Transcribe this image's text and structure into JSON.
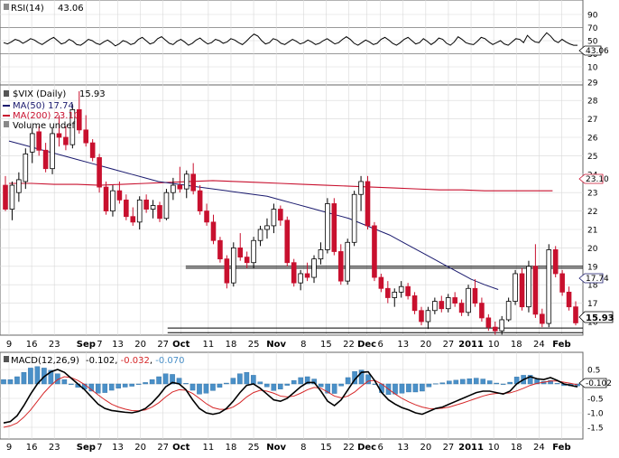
{
  "rsi": {
    "label": "RSI(14)",
    "value_text": "43.06",
    "value_tag": "43.06",
    "ticks": [
      90,
      70,
      50,
      30,
      10
    ],
    "overbought": 70,
    "oversold": 30,
    "values": [
      47,
      45,
      48,
      52,
      50,
      46,
      49,
      53,
      51,
      47,
      44,
      48,
      52,
      55,
      50,
      45,
      47,
      52,
      49,
      44,
      43,
      47,
      52,
      50,
      46,
      44,
      48,
      51,
      47,
      42,
      45,
      50,
      48,
      44,
      46,
      52,
      55,
      50,
      45,
      47,
      53,
      56,
      51,
      46,
      44,
      49,
      52,
      48,
      43,
      46,
      51,
      54,
      49,
      45,
      47,
      52,
      50,
      46,
      48,
      53,
      51,
      47,
      44,
      49,
      55,
      60,
      57,
      50,
      45,
      47,
      53,
      51,
      46,
      44,
      48,
      52,
      49,
      45,
      47,
      51,
      48,
      44,
      46,
      50,
      53,
      49,
      45,
      47,
      52,
      56,
      52,
      46,
      43,
      47,
      51,
      48,
      44,
      46,
      52,
      55,
      51,
      46,
      43,
      47,
      52,
      55,
      50,
      45,
      47,
      53,
      49,
      44,
      48,
      54,
      52,
      46,
      43,
      48,
      56,
      52,
      47,
      45,
      44,
      49,
      55,
      53,
      48,
      44,
      47,
      50,
      45,
      43,
      48,
      53,
      52,
      47,
      58,
      52,
      48,
      47,
      55,
      62,
      57,
      50,
      47,
      52,
      48,
      45,
      43,
      43
    ]
  },
  "price": {
    "symbol": "$VIX (Daily)",
    "last_text": "15.93",
    "last_tag": "15.93",
    "ma50_label": "MA(50) 17.74",
    "ma50_tag": "17.74",
    "ma200_label": "MA(200) 23.10",
    "ma200_tag": "23.10",
    "volume_label": "Volume undef",
    "ticks": [
      29,
      28,
      27,
      26,
      25,
      24,
      23,
      22,
      21,
      20,
      19,
      18,
      17,
      16
    ],
    "hlines": [
      {
        "y": 19.0,
        "from": 42,
        "to": 100
      },
      {
        "y": 18.9,
        "from": 42,
        "to": 100
      },
      {
        "y": 15.65,
        "from": 38,
        "to": 100
      },
      {
        "y": 15.4,
        "from": 38,
        "to": 100
      }
    ],
    "candles": [
      [
        23.4,
        23.9,
        22.0,
        22.1
      ],
      [
        22.1,
        23.6,
        21.5,
        23.4
      ],
      [
        23.0,
        24.1,
        22.5,
        23.7
      ],
      [
        23.6,
        25.4,
        23.2,
        25.1
      ],
      [
        25.2,
        26.5,
        24.6,
        26.2
      ],
      [
        26.3,
        26.6,
        25.0,
        25.3
      ],
      [
        25.3,
        25.7,
        24.1,
        24.3
      ],
      [
        24.3,
        26.5,
        24.0,
        26.2
      ],
      [
        26.2,
        27.2,
        25.5,
        26.0
      ],
      [
        26.0,
        26.6,
        25.3,
        25.6
      ],
      [
        25.6,
        27.8,
        25.4,
        27.5
      ],
      [
        27.5,
        28.5,
        26.2,
        26.4
      ],
      [
        26.4,
        27.2,
        25.5,
        25.7
      ],
      [
        25.7,
        25.9,
        24.7,
        24.9
      ],
      [
        24.9,
        25.1,
        23.0,
        23.3
      ],
      [
        23.3,
        23.6,
        21.8,
        22.0
      ],
      [
        22.0,
        23.4,
        21.7,
        23.1
      ],
      [
        23.1,
        23.6,
        22.4,
        22.6
      ],
      [
        22.6,
        22.9,
        21.5,
        21.7
      ],
      [
        21.7,
        22.2,
        21.2,
        21.4
      ],
      [
        21.4,
        22.8,
        21.0,
        22.6
      ],
      [
        22.6,
        22.9,
        21.9,
        22.1
      ],
      [
        22.1,
        22.6,
        21.6,
        22.3
      ],
      [
        22.3,
        22.5,
        21.4,
        21.6
      ],
      [
        21.6,
        23.2,
        21.5,
        23.0
      ],
      [
        23.0,
        23.8,
        22.6,
        23.4
      ],
      [
        23.4,
        24.4,
        23.0,
        23.2
      ],
      [
        23.2,
        24.2,
        22.7,
        24.0
      ],
      [
        24.0,
        24.6,
        22.9,
        23.1
      ],
      [
        23.1,
        23.4,
        21.8,
        22.0
      ],
      [
        22.0,
        22.4,
        21.2,
        21.4
      ],
      [
        21.4,
        21.8,
        20.2,
        20.4
      ],
      [
        20.4,
        20.6,
        19.2,
        19.4
      ],
      [
        19.4,
        19.6,
        17.8,
        18.1
      ],
      [
        18.1,
        20.3,
        17.9,
        20.0
      ],
      [
        20.0,
        20.8,
        19.3,
        19.5
      ],
      [
        19.5,
        19.8,
        18.9,
        19.2
      ],
      [
        19.2,
        20.6,
        18.9,
        20.4
      ],
      [
        20.4,
        21.2,
        20.1,
        21.0
      ],
      [
        21.0,
        21.6,
        20.5,
        21.2
      ],
      [
        21.2,
        22.4,
        20.8,
        22.1
      ],
      [
        22.1,
        22.3,
        21.2,
        21.5
      ],
      [
        21.5,
        21.7,
        19.0,
        19.2
      ],
      [
        19.2,
        19.4,
        17.9,
        18.1
      ],
      [
        18.1,
        18.8,
        17.7,
        18.6
      ],
      [
        18.6,
        19.2,
        18.2,
        18.4
      ],
      [
        18.4,
        19.6,
        18.1,
        19.4
      ],
      [
        19.4,
        20.3,
        19.1,
        19.9
      ],
      [
        19.9,
        22.7,
        19.7,
        22.4
      ],
      [
        22.4,
        22.7,
        19.6,
        19.8
      ],
      [
        19.8,
        20.2,
        18.0,
        18.2
      ],
      [
        18.2,
        20.5,
        18.0,
        20.3
      ],
      [
        20.3,
        23.1,
        20.1,
        22.9
      ],
      [
        22.9,
        23.9,
        22.0,
        23.6
      ],
      [
        23.6,
        23.9,
        21.0,
        21.2
      ],
      [
        21.2,
        21.4,
        18.2,
        18.4
      ],
      [
        18.4,
        18.6,
        17.6,
        17.8
      ],
      [
        17.8,
        18.2,
        17.0,
        17.3
      ],
      [
        17.3,
        17.8,
        16.8,
        17.6
      ],
      [
        17.6,
        18.2,
        17.3,
        17.9
      ],
      [
        17.9,
        18.1,
        17.2,
        17.4
      ],
      [
        17.4,
        17.6,
        16.4,
        16.6
      ],
      [
        16.6,
        16.8,
        15.8,
        16.0
      ],
      [
        16.0,
        16.8,
        15.6,
        16.6
      ],
      [
        16.6,
        17.3,
        16.4,
        17.1
      ],
      [
        17.1,
        17.4,
        16.5,
        16.7
      ],
      [
        16.7,
        17.5,
        16.5,
        17.3
      ],
      [
        17.3,
        17.6,
        16.8,
        17.0
      ],
      [
        17.0,
        17.2,
        16.3,
        16.5
      ],
      [
        16.5,
        18.0,
        16.3,
        17.8
      ],
      [
        17.8,
        18.3,
        16.8,
        17.0
      ],
      [
        17.0,
        17.3,
        16.0,
        16.2
      ],
      [
        16.2,
        16.4,
        15.5,
        15.7
      ],
      [
        15.7,
        16.0,
        15.3,
        15.5
      ],
      [
        15.5,
        16.3,
        15.3,
        16.1
      ],
      [
        16.1,
        17.3,
        16.0,
        17.1
      ],
      [
        17.1,
        18.8,
        16.9,
        18.6
      ],
      [
        18.6,
        18.9,
        16.6,
        16.8
      ],
      [
        16.8,
        19.3,
        16.5,
        19.0
      ],
      [
        19.0,
        20.2,
        16.2,
        16.4
      ],
      [
        16.4,
        16.7,
        15.7,
        15.9
      ],
      [
        15.9,
        20.2,
        15.7,
        19.9
      ],
      [
        19.9,
        20.1,
        18.4,
        18.6
      ],
      [
        18.6,
        18.8,
        17.4,
        17.6
      ],
      [
        17.6,
        17.9,
        16.6,
        16.8
      ],
      [
        16.8,
        17.1,
        15.8,
        15.93
      ]
    ],
    "ma50": [
      25.8,
      25.6,
      25.4,
      25.2,
      25.0,
      24.8,
      24.6,
      24.4,
      24.2,
      24.0,
      23.8,
      23.6,
      23.5,
      23.4,
      23.3,
      23.2,
      23.1,
      23.0,
      22.9,
      22.8,
      22.6,
      22.4,
      22.2,
      22.0,
      21.8,
      21.6,
      21.3,
      21.0,
      20.7,
      20.3,
      19.9,
      19.5,
      19.1,
      18.7,
      18.3,
      18.0,
      17.74
    ],
    "ma50_x": [
      0,
      3,
      6,
      9,
      12,
      15,
      18,
      21,
      24,
      27,
      30,
      33,
      36,
      39,
      42,
      45,
      48,
      51,
      54,
      57,
      60,
      63,
      66,
      69,
      72,
      75,
      78,
      81,
      84,
      87,
      90,
      93,
      96,
      99,
      102,
      105,
      108
    ],
    "ma200": [
      23.5,
      23.5,
      23.45,
      23.45,
      23.4,
      23.45,
      23.5,
      23.55,
      23.6,
      23.65,
      23.6,
      23.55,
      23.5,
      23.45,
      23.4,
      23.35,
      23.3,
      23.25,
      23.2,
      23.15,
      23.15,
      23.1,
      23.1,
      23.1,
      23.1
    ],
    "ma200_x": [
      0,
      5,
      10,
      15,
      20,
      25,
      30,
      35,
      40,
      45,
      50,
      55,
      60,
      65,
      70,
      75,
      80,
      85,
      90,
      95,
      100,
      105,
      110,
      115,
      120
    ]
  },
  "macd": {
    "label": "MACD(12,26,9)",
    "values_text": "-0.102",
    "signal_text": "-0.032",
    "hist_text": "-0.070",
    "value_tag": "-0.102",
    "ticks": [
      "0.5",
      "0.0",
      "-0.5",
      "-1.0",
      "-1.5"
    ],
    "macd": [
      -1.35,
      -1.3,
      -1.1,
      -0.75,
      -0.35,
      0.0,
      0.25,
      0.42,
      0.5,
      0.4,
      0.2,
      0.0,
      -0.2,
      -0.45,
      -0.7,
      -0.85,
      -0.92,
      -0.95,
      -0.98,
      -1.0,
      -0.95,
      -0.85,
      -0.65,
      -0.4,
      -0.1,
      0.05,
      0.0,
      -0.2,
      -0.55,
      -0.85,
      -1.0,
      -1.05,
      -1.0,
      -0.85,
      -0.6,
      -0.3,
      -0.05,
      0.0,
      -0.15,
      -0.35,
      -0.55,
      -0.6,
      -0.5,
      -0.3,
      -0.1,
      0.05,
      0.05,
      -0.25,
      -0.6,
      -0.75,
      -0.55,
      -0.2,
      0.15,
      0.4,
      0.42,
      0.1,
      -0.3,
      -0.55,
      -0.7,
      -0.82,
      -0.9,
      -1.0,
      -1.05,
      -0.95,
      -0.85,
      -0.8,
      -0.7,
      -0.6,
      -0.5,
      -0.4,
      -0.3,
      -0.25,
      -0.25,
      -0.3,
      -0.35,
      -0.25,
      0.0,
      0.15,
      0.25,
      0.18,
      0.15,
      0.22,
      0.12,
      0.0,
      -0.05,
      -0.102
    ],
    "signal": [
      -1.5,
      -1.45,
      -1.35,
      -1.15,
      -0.9,
      -0.6,
      -0.3,
      -0.05,
      0.15,
      0.25,
      0.22,
      0.12,
      -0.02,
      -0.2,
      -0.38,
      -0.55,
      -0.7,
      -0.8,
      -0.87,
      -0.92,
      -0.93,
      -0.9,
      -0.8,
      -0.65,
      -0.45,
      -0.28,
      -0.2,
      -0.22,
      -0.33,
      -0.5,
      -0.68,
      -0.82,
      -0.88,
      -0.88,
      -0.8,
      -0.65,
      -0.45,
      -0.3,
      -0.22,
      -0.25,
      -0.32,
      -0.42,
      -0.45,
      -0.42,
      -0.32,
      -0.2,
      -0.12,
      -0.15,
      -0.28,
      -0.42,
      -0.48,
      -0.42,
      -0.28,
      -0.08,
      0.1,
      0.12,
      0.0,
      -0.18,
      -0.35,
      -0.5,
      -0.62,
      -0.72,
      -0.8,
      -0.85,
      -0.86,
      -0.84,
      -0.8,
      -0.73,
      -0.66,
      -0.58,
      -0.5,
      -0.42,
      -0.36,
      -0.33,
      -0.33,
      -0.31,
      -0.24,
      -0.15,
      -0.05,
      0.02,
      0.06,
      0.1,
      0.1,
      0.06,
      0.02,
      -0.032
    ]
  },
  "x_axis": {
    "labels": [
      {
        "i": 0,
        "t": "9",
        "bold": false
      },
      {
        "i": 5,
        "t": "16",
        "bold": false
      },
      {
        "i": 10,
        "t": "23",
        "bold": false
      },
      {
        "i": 17,
        "t": "Sep",
        "bold": true
      },
      {
        "i": 20,
        "t": "7",
        "bold": false
      },
      {
        "i": 24,
        "t": "13",
        "bold": false
      },
      {
        "i": 29,
        "t": "20",
        "bold": false
      },
      {
        "i": 34,
        "t": "27",
        "bold": false
      },
      {
        "i": 38,
        "t": "Oct",
        "bold": true
      },
      {
        "i": 44,
        "t": "11",
        "bold": false
      },
      {
        "i": 49,
        "t": "18",
        "bold": false
      },
      {
        "i": 54,
        "t": "25",
        "bold": false
      },
      {
        "i": 59,
        "t": "Nov",
        "bold": true
      },
      {
        "i": 65,
        "t": "8",
        "bold": false
      },
      {
        "i": 70,
        "t": "15",
        "bold": false
      },
      {
        "i": 75,
        "t": "22",
        "bold": false
      },
      {
        "i": 79,
        "t": "Dec",
        "bold": true
      },
      {
        "i": 82,
        "t": "6",
        "bold": false
      },
      {
        "i": 87,
        "t": "13",
        "bold": false
      },
      {
        "i": 92,
        "t": "20",
        "bold": false
      },
      {
        "i": 97,
        "t": "27",
        "bold": false
      },
      {
        "i": 102,
        "t": "2011",
        "bold": true
      },
      {
        "i": 107,
        "t": "10",
        "bold": false
      },
      {
        "i": 112,
        "t": "18",
        "bold": false
      },
      {
        "i": 117,
        "t": "24",
        "bold": false
      },
      {
        "i": 122,
        "t": "Feb",
        "bold": true
      }
    ]
  },
  "colors": {
    "up": "#ffffff",
    "down": "#c8102e",
    "ma50": "#1a1a6e",
    "ma200": "#c8102e",
    "macd": "#000000",
    "signal": "#d62728",
    "hist": "#4a90c8",
    "grid": "#d8d8d8"
  }
}
